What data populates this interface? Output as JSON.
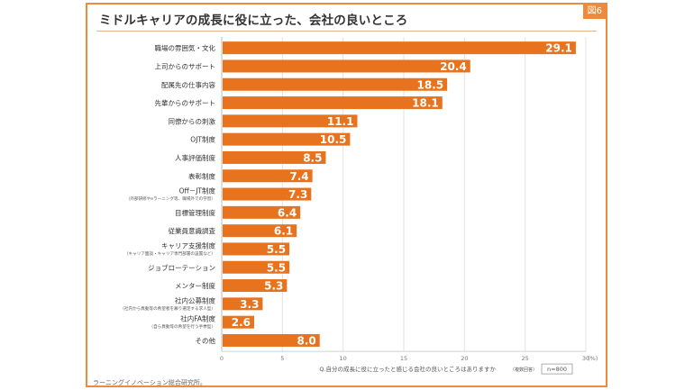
{
  "header": {
    "title": "ミドルキャリアの成長に役に立った、会社の良いところ",
    "figure_badge": "図6"
  },
  "chart_data": {
    "type": "bar",
    "orientation": "horizontal",
    "categories": [
      {
        "label": "職場の雰囲気・文化",
        "sublabel": ""
      },
      {
        "label": "上司からのサポート",
        "sublabel": ""
      },
      {
        "label": "配属先の仕事内容",
        "sublabel": ""
      },
      {
        "label": "先輩からのサポート",
        "sublabel": ""
      },
      {
        "label": "同僚からの刺激",
        "sublabel": ""
      },
      {
        "label": "OJT制度",
        "sublabel": ""
      },
      {
        "label": "人事評価制度",
        "sublabel": ""
      },
      {
        "label": "表彰制度",
        "sublabel": ""
      },
      {
        "label": "Off－JT制度",
        "sublabel": "（外部研修やeラーニング等、職場外での学習）"
      },
      {
        "label": "目標管理制度",
        "sublabel": ""
      },
      {
        "label": "従業員意識調査",
        "sublabel": ""
      },
      {
        "label": "キャリア支援制度",
        "sublabel": "（キャリア面談・キャリア専門部署の設置など）"
      },
      {
        "label": "ジョブローテーション",
        "sublabel": ""
      },
      {
        "label": "メンター制度",
        "sublabel": ""
      },
      {
        "label": "社内公募制度",
        "sublabel": "（社内から異動等の希望者を募り選定する求人型）"
      },
      {
        "label": "社内FA制度",
        "sublabel": "（自ら異動等の希望を行う手挙型）"
      },
      {
        "label": "その他",
        "sublabel": ""
      }
    ],
    "values": [
      29.1,
      20.4,
      18.5,
      18.1,
      11.1,
      10.5,
      8.5,
      7.4,
      7.3,
      6.4,
      6.1,
      5.5,
      5.5,
      5.3,
      3.3,
      2.6,
      8.0
    ],
    "value_labels": [
      "29.1",
      "20.4",
      "18.5",
      "18.1",
      "11.1",
      "10.5",
      "8.5",
      "7.4",
      "7.3",
      "6.4",
      "6.1",
      "5.5",
      "5.5",
      "5.3",
      "3.3",
      "2.6",
      "8.0"
    ],
    "xlim": [
      0,
      30
    ],
    "xticks": [
      "0",
      "5",
      "10",
      "15",
      "20",
      "25",
      "30"
    ],
    "x_unit": "(%)",
    "grid": true,
    "bar_color": "#e8731e",
    "question": "Q.自分の成長に役に立ったと感じる会社の良いところはありますか",
    "question_note": "（複数回答）",
    "sample": "n=800"
  },
  "footer": {
    "source": "ラーニングイノベーション総合研究所。"
  }
}
